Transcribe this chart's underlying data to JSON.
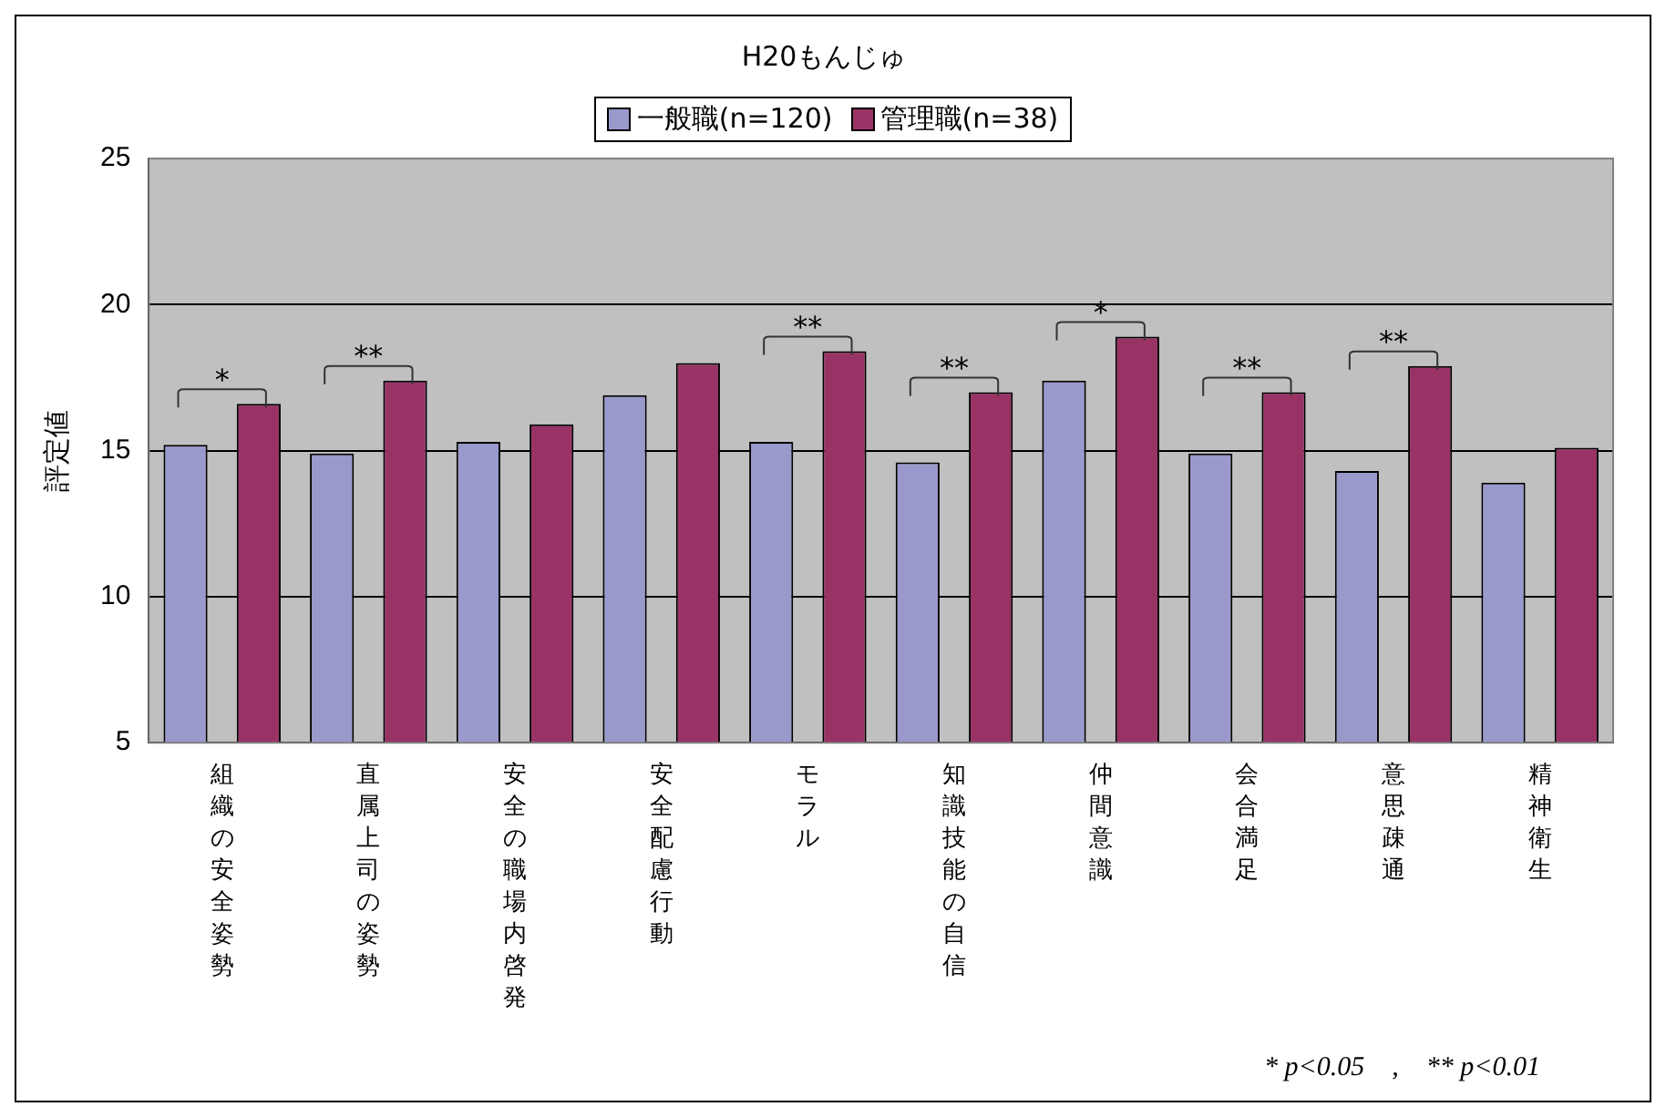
{
  "chart_data": {
    "type": "bar",
    "title": "H20もんじゅ",
    "ylabel": "評定値",
    "categories": [
      "組織の安全姿勢",
      "直属上司の姿勢",
      "安全の職場内啓発",
      "安全配慮行動",
      "モラル",
      "知識技能の自信",
      "仲間意識",
      "会合満足",
      "意思疎通",
      "精神衛生"
    ],
    "series": [
      {
        "name": "一般職(n=120)",
        "color": "#9999cc",
        "values": [
          15.2,
          14.9,
          15.3,
          16.9,
          15.3,
          14.6,
          17.4,
          14.9,
          14.3,
          13.9
        ]
      },
      {
        "name": "管理職(n=38)",
        "color": "#993366",
        "values": [
          16.6,
          17.4,
          15.9,
          18.0,
          18.4,
          17.0,
          18.9,
          17.0,
          17.9,
          15.1
        ]
      }
    ],
    "ylim": [
      5,
      25
    ],
    "yticks": [
      5,
      10,
      15,
      20,
      25
    ],
    "grid": "y",
    "legend": "top",
    "annotations": [
      "*",
      "**",
      "**",
      "**",
      "*",
      "**",
      "**",
      "* p<0.05　,　** p<0.01"
    ]
  }
}
